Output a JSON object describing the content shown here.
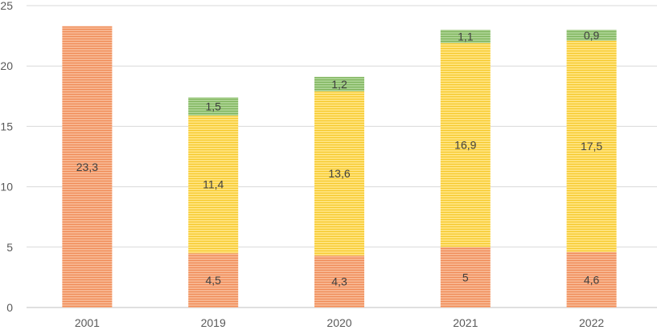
{
  "chart_data": {
    "type": "bar",
    "stacked": true,
    "categories": [
      "2001",
      "2019",
      "2020",
      "2021",
      "2022"
    ],
    "series": [
      {
        "values": [
          23.3,
          4.5,
          4.3,
          5,
          4.6
        ],
        "labels": [
          "23,3",
          "4,5",
          "4,3",
          "5",
          "4,6"
        ],
        "color": "#f4a070"
      },
      {
        "values": [
          null,
          11.4,
          13.6,
          16.9,
          17.5
        ],
        "labels": [
          "",
          "11,4",
          "13,6",
          "16,9",
          "17,5"
        ],
        "color": "#ffd94a"
      },
      {
        "values": [
          null,
          1.5,
          1.2,
          1.1,
          0.9
        ],
        "labels": [
          "",
          "1,5",
          "1,2",
          "1,1",
          "0,9"
        ],
        "color": "#92c472"
      }
    ],
    "ylim": [
      0,
      25
    ],
    "yticks": [
      "0",
      "5",
      "10",
      "15",
      "20",
      "25"
    ],
    "grid": true,
    "title": "",
    "xlabel": "",
    "ylabel": ""
  }
}
